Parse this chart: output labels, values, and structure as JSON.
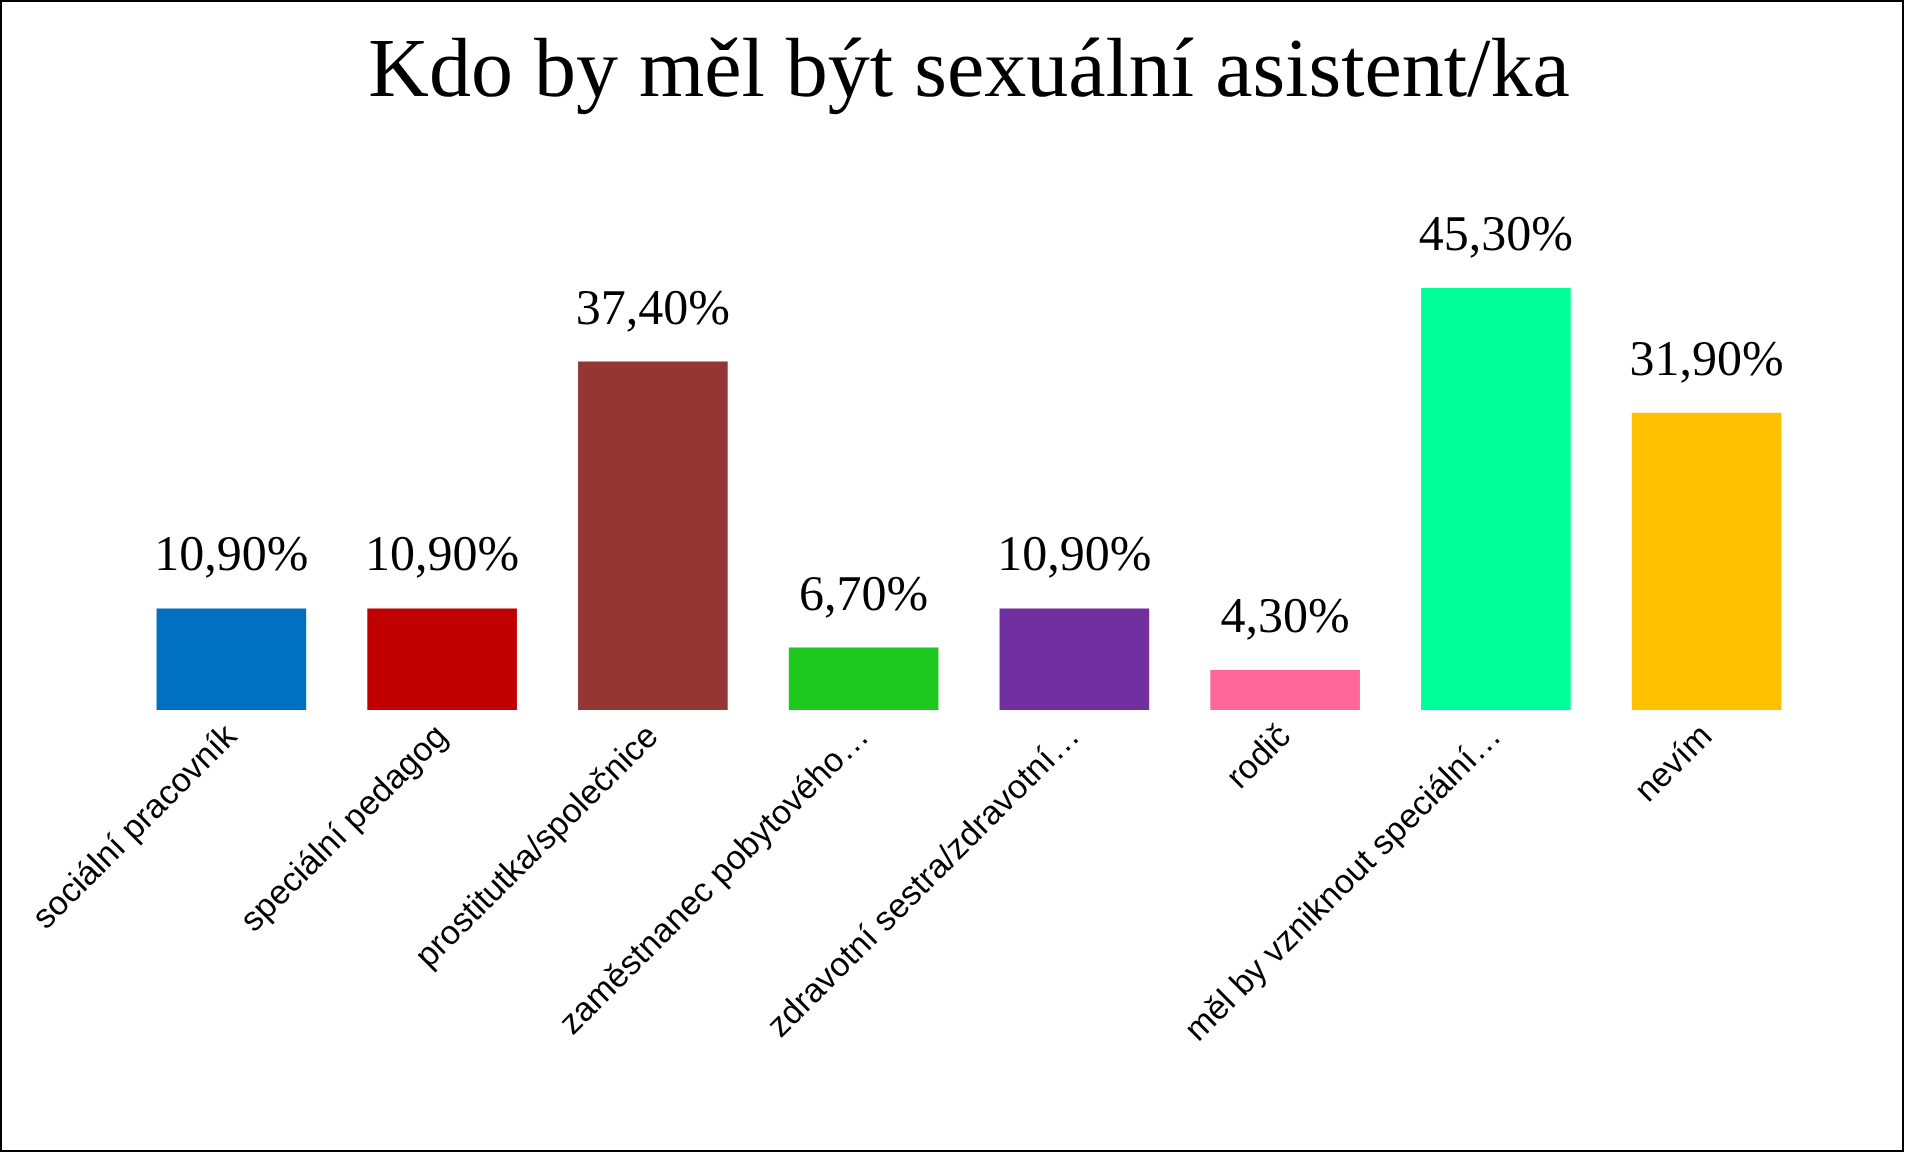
{
  "chart_data": {
    "type": "bar",
    "title": "Kdo by měl být sexuální asistent/ka",
    "categories": [
      "sociální pracovník",
      "speciální pedagog",
      "prostitutka/společnice",
      "zaměstnanec pobytového…",
      "zdravotní sestra/zdravotní…",
      "rodič",
      "měl by vzniknout speciální…",
      "nevím"
    ],
    "values": [
      10.9,
      10.9,
      37.4,
      6.7,
      10.9,
      4.3,
      45.3,
      31.9
    ],
    "colors": [
      "#0070c0",
      "#c00000",
      "#943634",
      "#1ec81e",
      "#7030a0",
      "#ff6699",
      "#00ff99",
      "#ffc000"
    ],
    "value_labels": [
      "10,90%",
      "10,90%",
      "37,40%",
      "6,70%",
      "10,90%",
      "4,30%",
      "45,30%",
      "31,90%"
    ]
  }
}
